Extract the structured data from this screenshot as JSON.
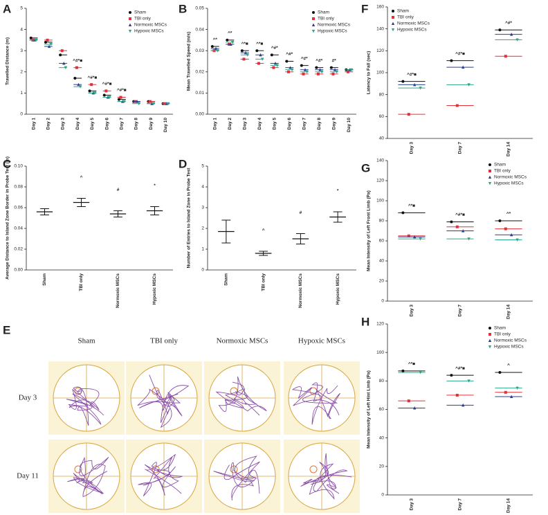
{
  "chart_data": [
    {
      "panel": "A",
      "type": "dot",
      "ylabel": "Travelled Distance (m)",
      "categories": [
        "Day 1",
        "Day 2",
        "Day 3",
        "Day 4",
        "Day 5",
        "Day 6",
        "Day 7",
        "Day 8",
        "Day 9",
        "Day 10"
      ],
      "ylim": [
        0,
        5
      ],
      "yticks": [
        0,
        1,
        2,
        3,
        4,
        5
      ],
      "legend": "upper right",
      "series": [
        {
          "name": "Sham",
          "color": "#111111",
          "marker": "circle",
          "values": [
            3.6,
            3.4,
            2.8,
            1.7,
            1.1,
            0.9,
            0.7,
            0.6,
            0.6,
            0.5
          ]
        },
        {
          "name": "TBI only",
          "color": "#e0303a",
          "marker": "square",
          "values": [
            3.5,
            3.5,
            3.0,
            2.2,
            1.4,
            1.1,
            0.8,
            0.6,
            0.6,
            0.5
          ]
        },
        {
          "name": "Normoxic MSCs",
          "color": "#2a3f8f",
          "marker": "triangle",
          "values": [
            3.5,
            3.2,
            2.4,
            1.4,
            1.0,
            0.8,
            0.6,
            0.6,
            0.5,
            0.5
          ]
        },
        {
          "name": "Hypoxic MSCs",
          "color": "#2aa88a",
          "marker": "down-triangle",
          "values": [
            3.5,
            3.3,
            2.2,
            1.3,
            1.0,
            0.8,
            0.6,
            0.5,
            0.5,
            0.5
          ]
        }
      ],
      "annotations": [
        {
          "category": "Day 4",
          "text": "^#*■"
        },
        {
          "category": "Day 5",
          "text": "^#*■"
        },
        {
          "category": "Day 6",
          "text": "^#*■"
        },
        {
          "category": "Day 7",
          "text": "^#*■"
        }
      ]
    },
    {
      "panel": "B",
      "type": "dot",
      "ylabel": "Mean Travelled Speed (m/s)",
      "categories": [
        "Day 1",
        "Day 2",
        "Day 3",
        "Day 4",
        "Day 5",
        "Day 6",
        "Day 7",
        "Day 8",
        "Day 9",
        "Day 10"
      ],
      "ylim": [
        0,
        0.05
      ],
      "yticks": [
        {
          "value": 0,
          "label": "0.00"
        },
        {
          "value": 0.01,
          "label": "0.01"
        },
        {
          "value": 0.02,
          "label": "0.02"
        },
        {
          "value": 0.03,
          "label": "0.03"
        },
        {
          "value": 0.04,
          "label": "0.04"
        },
        {
          "value": 0.05,
          "label": "0.05"
        }
      ],
      "legend": "upper right",
      "series": [
        {
          "name": "Sham",
          "color": "#111111",
          "marker": "circle",
          "values": [
            0.032,
            0.035,
            0.03,
            0.03,
            0.028,
            0.025,
            0.023,
            0.022,
            0.022,
            0.021
          ]
        },
        {
          "name": "TBI only",
          "color": "#e0303a",
          "marker": "square",
          "values": [
            0.03,
            0.033,
            0.026,
            0.024,
            0.022,
            0.02,
            0.019,
            0.019,
            0.019,
            0.02
          ]
        },
        {
          "name": "Normoxic MSCs",
          "color": "#2a3f8f",
          "marker": "triangle",
          "values": [
            0.031,
            0.033,
            0.029,
            0.028,
            0.024,
            0.022,
            0.021,
            0.021,
            0.021,
            0.021
          ]
        },
        {
          "name": "Hypoxic MSCs",
          "color": "#2aa88a",
          "marker": "down-triangle",
          "values": [
            0.03,
            0.034,
            0.028,
            0.026,
            0.023,
            0.021,
            0.02,
            0.02,
            0.02,
            0.021
          ]
        }
      ],
      "annotations": [
        {
          "category": "Day 1",
          "text": "^*"
        },
        {
          "category": "Day 2",
          "text": "^*"
        },
        {
          "category": "Day 3",
          "text": "^*■"
        },
        {
          "category": "Day 4",
          "text": "^*■"
        },
        {
          "category": "Day 5",
          "text": "^#*"
        },
        {
          "category": "Day 6",
          "text": "^#*"
        },
        {
          "category": "Day 7",
          "text": "^#*"
        },
        {
          "category": "Day 8",
          "text": "^#*"
        },
        {
          "category": "Day 9",
          "text": "#*"
        }
      ]
    },
    {
      "panel": "F",
      "type": "dot",
      "ylabel": "Latency to Fall (sec)",
      "categories": [
        "Day 3",
        "Day 7",
        "Day 14"
      ],
      "ylim": [
        40,
        160
      ],
      "yticks": [
        40,
        60,
        80,
        100,
        120,
        140,
        160
      ],
      "legend": "upper left",
      "series": [
        {
          "name": "Sham",
          "color": "#111111",
          "marker": "circle",
          "values": [
            92,
            111,
            139
          ]
        },
        {
          "name": "TBI only",
          "color": "#e0303a",
          "marker": "square",
          "values": [
            62,
            70,
            115
          ]
        },
        {
          "name": "Normoxic MSCs",
          "color": "#2a3f8f",
          "marker": "triangle",
          "values": [
            89,
            105,
            135
          ]
        },
        {
          "name": "Hypoxic MSCs",
          "color": "#2aa88a",
          "marker": "down-triangle",
          "values": [
            86,
            89,
            130
          ]
        }
      ],
      "annotations": [
        {
          "category": "Day 3",
          "text": "^#*■"
        },
        {
          "category": "Day 7",
          "text": "^#*■"
        },
        {
          "category": "Day 14",
          "text": "^#*"
        }
      ]
    },
    {
      "panel": "C",
      "type": "errdot",
      "ylabel": "Average Distance to Island Zone Border in Probe Test (m)",
      "categories": [
        "Sham",
        "TBI only",
        "Normoxic MSCs",
        "Hypoxic MSCs"
      ],
      "ylim": [
        0,
        0.1
      ],
      "yticks": [
        {
          "value": 0,
          "label": "0.00"
        },
        {
          "value": 0.02,
          "label": "0.02"
        },
        {
          "value": 0.04,
          "label": "0.04"
        },
        {
          "value": 0.06,
          "label": "0.06"
        },
        {
          "value": 0.08,
          "label": "0.08"
        },
        {
          "value": 0.1,
          "label": "0.10"
        }
      ],
      "color": "#111111",
      "values": [
        0.056,
        0.065,
        0.054,
        0.057
      ],
      "errors": [
        0.003,
        0.004,
        0.003,
        0.004
      ],
      "annotation_color": "#e0303a",
      "annotations": [
        {
          "category": "TBI only",
          "text": "^"
        },
        {
          "category": "Normoxic MSCs",
          "text": "#"
        },
        {
          "category": "Hypoxic MSCs",
          "text": "*"
        }
      ]
    },
    {
      "panel": "D",
      "type": "errdot",
      "ylabel": "Number of Entries to Island Zone in Probe Test",
      "categories": [
        "Sham",
        "TBI only",
        "Normoxic MSCs",
        "Hypoxic MSCs"
      ],
      "ylim": [
        0,
        5
      ],
      "yticks": [
        0,
        1,
        2,
        3,
        4,
        5
      ],
      "color": "#111111",
      "values": [
        1.85,
        0.8,
        1.5,
        2.55
      ],
      "errors": [
        0.55,
        0.1,
        0.25,
        0.25
      ],
      "annotation_color": "#e0303a",
      "annotations": [
        {
          "category": "TBI only",
          "text": "^"
        },
        {
          "category": "Normoxic MSCs",
          "text": "#"
        },
        {
          "category": "Hypoxic MSCs",
          "text": "*"
        }
      ]
    },
    {
      "panel": "G",
      "type": "dot",
      "ylabel": "Mean Intensity of Left Front Limb (Pa)",
      "categories": [
        "Day 3",
        "Day 7",
        "Day 14"
      ],
      "ylim": [
        0,
        140
      ],
      "yticks": [
        0,
        20,
        40,
        60,
        80,
        100,
        120,
        140
      ],
      "legend": "upper right",
      "series": [
        {
          "name": "Sham",
          "color": "#111111",
          "marker": "circle",
          "values": [
            88,
            79,
            80
          ]
        },
        {
          "name": "TBI only",
          "color": "#e0303a",
          "marker": "square",
          "values": [
            65,
            74,
            72
          ]
        },
        {
          "name": "Normoxic MSCs",
          "color": "#2a3f8f",
          "marker": "triangle",
          "values": [
            64,
            70,
            66
          ]
        },
        {
          "name": "Hypoxic MSCs",
          "color": "#2aa88a",
          "marker": "down-triangle",
          "values": [
            62,
            62,
            61
          ]
        }
      ],
      "annotations": [
        {
          "category": "Day 3",
          "text": "^*■"
        },
        {
          "category": "Day 7",
          "text": "^#*■"
        },
        {
          "category": "Day 14",
          "text": "^*"
        }
      ]
    },
    {
      "panel": "H",
      "type": "dot",
      "ylabel": "Mean Intensity of Left Hint Limb (Pa)",
      "categories": [
        "Day 3",
        "Day 7",
        "Day 14"
      ],
      "ylim": [
        0,
        120
      ],
      "yticks": [
        0,
        20,
        40,
        60,
        80,
        100,
        120
      ],
      "legend": "upper right",
      "series": [
        {
          "name": "Sham",
          "color": "#111111",
          "marker": "circle",
          "values": [
            87,
            84,
            86
          ]
        },
        {
          "name": "TBI only",
          "color": "#e0303a",
          "marker": "square",
          "values": [
            66,
            70,
            72
          ]
        },
        {
          "name": "Normoxic MSCs",
          "color": "#2a3f8f",
          "marker": "triangle",
          "values": [
            61,
            63,
            69
          ]
        },
        {
          "name": "Hypoxic MSCs",
          "color": "#2aa88a",
          "marker": "down-triangle",
          "values": [
            86,
            80,
            75
          ]
        }
      ],
      "annotations": [
        {
          "category": "Day 3",
          "text": "^*■"
        },
        {
          "category": "Day 7",
          "text": "^#*■"
        },
        {
          "category": "Day 14",
          "text": "^"
        }
      ]
    }
  ],
  "panel_e": {
    "panel": "E",
    "columns": [
      "Sham",
      "TBI only",
      "Normoxic MSCs",
      "Hypoxic MSCs"
    ],
    "rows": [
      "Day 3",
      "Day 11"
    ]
  }
}
